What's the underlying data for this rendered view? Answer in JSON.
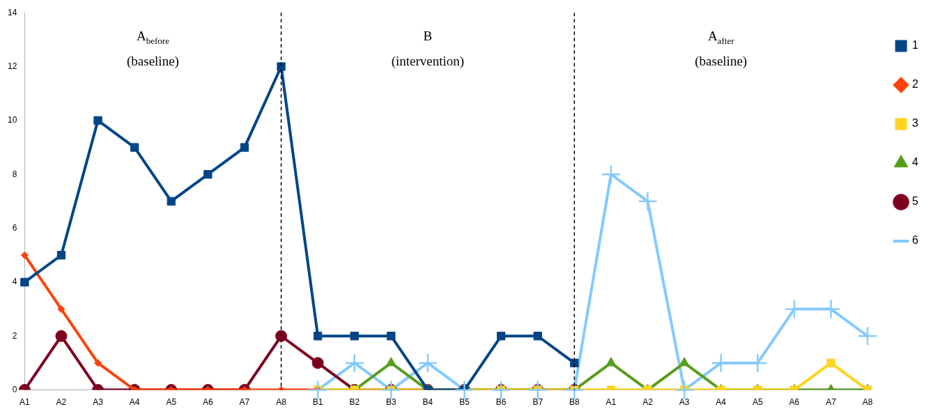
{
  "chart_data": {
    "type": "line",
    "categories": [
      "A1",
      "A2",
      "A3",
      "A4",
      "A5",
      "A6",
      "A7",
      "A8",
      "B1",
      "B2",
      "B3",
      "B4",
      "B5",
      "B6",
      "B7",
      "B8",
      "A1",
      "A2",
      "A3",
      "A4",
      "A5",
      "A6",
      "A7",
      "A8"
    ],
    "series": [
      {
        "name": "1",
        "color": "#004586",
        "marker": "square",
        "values": [
          4,
          5,
          10,
          9,
          7,
          8,
          9,
          12,
          2,
          2,
          2,
          0,
          0,
          2,
          2,
          1,
          null,
          null,
          null,
          null,
          null,
          null,
          null,
          null
        ]
      },
      {
        "name": "2",
        "color": "#ff420e",
        "marker": "diamond",
        "values": [
          5,
          3,
          1,
          0,
          0,
          0,
          0,
          0,
          0,
          null,
          null,
          null,
          null,
          null,
          null,
          null,
          null,
          null,
          null,
          null,
          null,
          null,
          null,
          null
        ]
      },
      {
        "name": "3",
        "color": "#ffd320",
        "marker": "square",
        "values": [
          null,
          null,
          null,
          null,
          null,
          null,
          null,
          null,
          0,
          0,
          0,
          0,
          0,
          0,
          0,
          0,
          0,
          0,
          0,
          0,
          0,
          0,
          1,
          0
        ]
      },
      {
        "name": "4",
        "color": "#579d1c",
        "marker": "triangle",
        "values": [
          null,
          null,
          null,
          null,
          null,
          null,
          null,
          null,
          0,
          0,
          1,
          0,
          0,
          0,
          0,
          0,
          1,
          0,
          1,
          0,
          0,
          0,
          0,
          0
        ]
      },
      {
        "name": "5",
        "color": "#7e0021",
        "marker": "circle",
        "values": [
          0,
          2,
          0,
          0,
          0,
          0,
          0,
          2,
          1,
          0,
          0,
          0,
          0,
          0,
          0,
          0,
          null,
          null,
          null,
          null,
          null,
          null,
          null,
          null
        ]
      },
      {
        "name": "6",
        "color": "#83caff",
        "marker": "cross",
        "values": [
          null,
          null,
          null,
          null,
          null,
          null,
          null,
          null,
          0,
          1,
          0,
          1,
          0,
          0,
          0,
          0,
          8,
          7,
          0,
          1,
          1,
          3,
          3,
          2
        ]
      }
    ],
    "ylim": [
      0,
      14
    ],
    "yticks": [
      0,
      2,
      4,
      6,
      8,
      10,
      12,
      14
    ],
    "grid": false,
    "legend": "right",
    "ref_lines": [
      {
        "axis": "x",
        "value": "A8",
        "line_style": "dashed",
        "color": "#000000"
      },
      {
        "axis": "x",
        "value": "B8",
        "line_style": "dashed",
        "color": "#000000"
      }
    ],
    "annotations": [
      "A$_{before}$\n(baseline)",
      "B\n(intervention)",
      "A$_{after}$\n(baseline)"
    ]
  }
}
